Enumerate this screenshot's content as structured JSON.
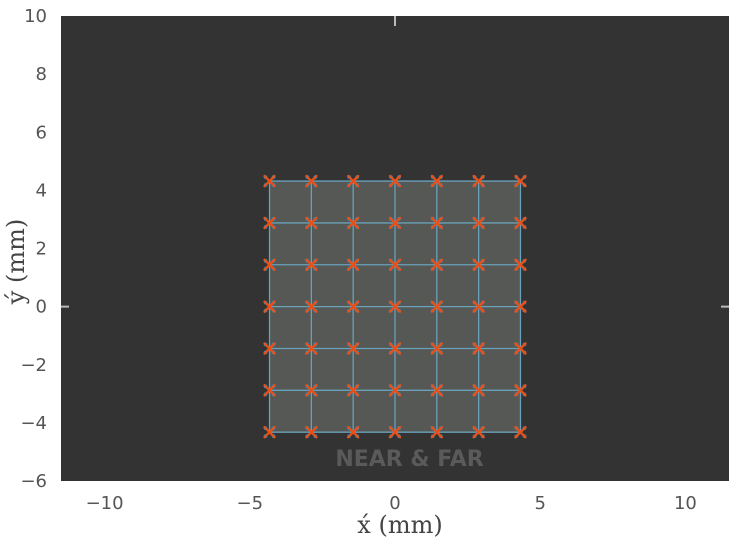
{
  "chart_data": {
    "type": "scatter",
    "title": "",
    "xlabel": "x́ (mm)",
    "ylabel": "ý (mm)",
    "xlim": [
      -11.5,
      11.5
    ],
    "ylim": [
      -6,
      10
    ],
    "xticks": [
      -10,
      -5,
      0,
      5,
      10
    ],
    "yticks": [
      -6,
      -4,
      -2,
      0,
      2,
      4,
      6,
      8,
      10
    ],
    "xtick_labels": [
      "−10",
      "−5",
      "0",
      "5",
      "10"
    ],
    "ytick_labels": [
      "−6",
      "−4",
      "−2",
      "0",
      "2",
      "4",
      "6",
      "8",
      "10"
    ],
    "grid": false,
    "watermark": "NEAR & FAR",
    "colors": {
      "background": "#333333",
      "region_fill": "#555855",
      "grid_lines": "#6aa0b8",
      "near_marker": "#1f9bd6",
      "far_marker": "#e8501a",
      "tick": "#bbbbbb"
    },
    "grid_x": [
      -4.32,
      -2.88,
      -1.44,
      0,
      1.44,
      2.88,
      4.32
    ],
    "grid_y": [
      -4.32,
      -2.88,
      -1.44,
      0,
      1.44,
      2.88,
      4.32
    ],
    "series": [
      {
        "marker": "near",
        "points": "grid_x × grid_y"
      },
      {
        "marker": "far",
        "points": "grid_x × grid_y"
      }
    ]
  }
}
